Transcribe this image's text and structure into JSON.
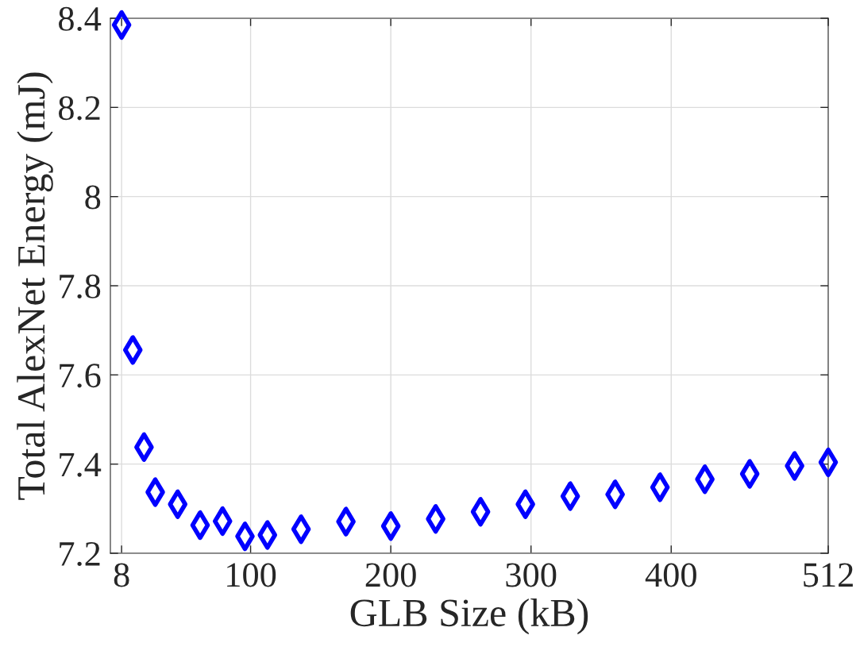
{
  "chart_data": {
    "type": "scatter",
    "xlabel": "GLB Size (kB)",
    "ylabel": "Total AlexNet Energy (mJ)",
    "x": [
      8,
      16,
      24,
      32,
      48,
      64,
      80,
      96,
      112,
      136,
      168,
      200,
      232,
      264,
      296,
      328,
      360,
      392,
      424,
      456,
      488,
      512
    ],
    "series": [
      {
        "color": "#0000ff",
        "values": [
          8.385,
          7.656,
          7.438,
          7.337,
          7.31,
          7.263,
          7.272,
          7.238,
          7.241,
          7.254,
          7.271,
          7.261,
          7.277,
          7.293,
          7.31,
          7.328,
          7.332,
          7.348,
          7.366,
          7.378,
          7.396,
          7.404
        ]
      }
    ],
    "xlim": [
      0,
      512
    ],
    "xticks": [
      8,
      100,
      200,
      300,
      400,
      512
    ],
    "ylim": [
      7.2,
      8.4
    ],
    "yticks": [
      {
        "value": 7.2,
        "label": "7.2"
      },
      {
        "value": 7.4,
        "label": "7.4"
      },
      {
        "value": 7.6,
        "label": "7.6"
      },
      {
        "value": 7.8,
        "label": "7.8"
      },
      {
        "value": 8.0,
        "label": "8"
      },
      {
        "value": 8.2,
        "label": "8.2"
      },
      {
        "value": 8.4,
        "label": "8.4"
      }
    ],
    "grid": true,
    "marker": "diamond"
  }
}
